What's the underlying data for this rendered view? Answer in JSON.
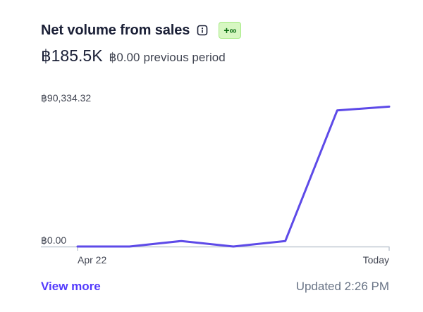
{
  "card": {
    "title": "Net volume from sales",
    "info_icon": "info-icon",
    "badge": "+∞",
    "current_value": "฿185.5K",
    "previous_value": "฿0.00",
    "previous_label": "previous period",
    "view_more": "View more",
    "updated": "Updated 2:26 PM"
  },
  "colors": {
    "line": "#5d4ae8",
    "badge_bg": "#d7f7c2",
    "badge_text": "#05690d",
    "link": "#533afd"
  },
  "chart_data": {
    "type": "line",
    "y_tick_labels": [
      "฿90,334.32",
      "฿0.00"
    ],
    "x_tick_labels": [
      "Apr 22",
      "Today"
    ],
    "ylim": [
      0,
      90334.32
    ],
    "series": [
      {
        "values": [
          0,
          0,
          3500,
          0,
          3500,
          86400,
          88800
        ]
      }
    ]
  }
}
